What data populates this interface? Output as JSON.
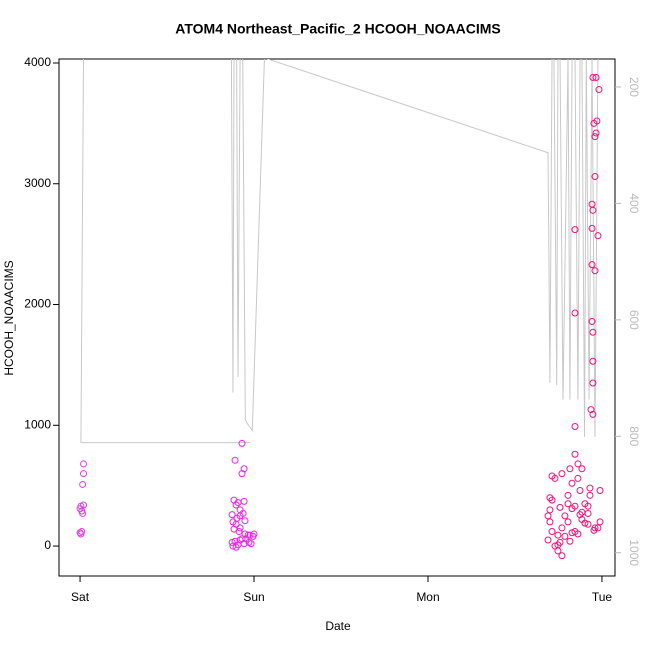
{
  "chart_data": {
    "type": "scatter",
    "title": "ATOM4 Northeast_Pacific_2 HCOOH_NOAACIMS",
    "x_label": "Date",
    "y_label": "HCOOH_NOAACIMS",
    "xlim": [
      -0.121,
      3.075
    ],
    "xticks": [
      {
        "value": 0,
        "label": "Sat"
      },
      {
        "value": 1,
        "label": "Sun"
      },
      {
        "value": 2,
        "label": "Mon"
      },
      {
        "value": 3,
        "label": "Tue"
      }
    ],
    "ylim": [
      -248,
      4033
    ],
    "yticks": [
      0,
      1000,
      2000,
      3000,
      4000
    ],
    "y2lim": [
      1040,
      152
    ],
    "y2ticks": [
      200,
      400,
      600,
      800,
      1000
    ],
    "series": [
      {
        "color": "#e040e0",
        "x": [
          0.0,
          0.005,
          0.01,
          0.0,
          0.005,
          0.01,
          0.015,
          0.02,
          0.015,
          0.02,
          0.02
        ],
        "values": [
          110,
          100,
          120,
          310,
          330,
          290,
          270,
          340,
          510,
          600,
          680
        ]
      },
      {
        "color": "#f020e8",
        "x": [
          0.931,
          0.891,
          0.943,
          0.931,
          0.885,
          0.908,
          0.897,
          0.92,
          0.937,
          0.92,
          0.902,
          0.879,
          0.897,
          0.92,
          0.914,
          0.948,
          0.977,
          0.994,
          0.954,
          0.92,
          0.891,
          0.874,
          0.943,
          0.908,
          0.879,
          0.897,
          0.943,
          0.874,
          1.0,
          0.966,
          0.931,
          0.971,
          0.983,
          0.885,
          0.948
        ],
        "values": [
          850,
          710,
          640,
          600,
          380,
          360,
          340,
          300,
          270,
          250,
          230,
          200,
          180,
          150,
          120,
          100,
          90,
          80,
          60,
          50,
          40,
          30,
          20,
          10,
          0,
          -10,
          370,
          260,
          100,
          90,
          60,
          30,
          20,
          140,
          210
        ]
      },
      {
        "color": "#f5107a",
        "x": [
          2.948,
          2.966,
          2.983,
          2.971,
          2.954,
          2.966,
          2.96,
          2.96,
          2.943,
          2.948,
          2.943,
          2.845,
          2.977,
          2.943,
          2.96,
          2.845,
          2.943,
          2.948,
          2.948,
          2.948,
          2.937,
          2.948,
          2.845,
          2.845,
          2.69,
          2.701,
          2.713,
          2.73,
          2.747,
          2.759,
          2.77,
          2.787,
          2.805,
          2.816,
          2.828,
          2.845,
          2.862,
          2.874,
          2.885,
          2.902,
          2.92,
          2.931,
          2.96,
          2.989,
          2.69,
          2.701,
          2.713,
          2.73,
          2.747,
          2.759,
          2.77,
          2.787,
          2.805,
          2.816,
          2.828,
          2.845,
          2.862,
          2.874,
          2.885,
          2.902,
          2.92,
          2.931,
          2.954,
          2.977,
          2.701,
          2.713,
          2.747,
          2.77,
          2.805,
          2.828,
          2.862,
          2.885,
          2.92,
          2.989
        ],
        "values": [
          3880,
          3880,
          3780,
          3520,
          3500,
          3420,
          3390,
          3060,
          2830,
          2780,
          2630,
          2620,
          2570,
          2330,
          2280,
          1930,
          1860,
          1770,
          1530,
          1350,
          1130,
          1090,
          990,
          760,
          50,
          200,
          380,
          560,
          90,
          30,
          150,
          250,
          420,
          640,
          310,
          120,
          560,
          460,
          280,
          350,
          180,
          420,
          150,
          200,
          250,
          400,
          120,
          0,
          -40,
          320,
          600,
          80,
          200,
          40,
          520,
          330,
          100,
          260,
          640,
          190,
          330,
          480,
          130,
          150,
          300,
          580,
          10,
          -80,
          350,
          110,
          680,
          220,
          270,
          460
        ]
      },
      {
        "type": "line",
        "axis": "y2",
        "color": "#c8c8c8",
        "x": [
          0.98,
          0.005,
          0.012,
          0.02,
          0.87,
          0.879,
          0.885,
          0.9,
          0.908,
          0.92,
          0.935,
          0.95,
          0.966,
          0.99,
          1.06,
          2.69,
          2.701,
          2.713,
          2.724,
          2.74,
          2.747,
          2.759,
          2.776,
          2.805,
          2.816,
          2.828,
          2.845,
          2.862,
          2.874,
          2.885,
          2.9,
          2.91,
          2.926,
          2.943,
          2.96,
          2.977
        ],
        "values": [
          811,
          811,
          500,
          150,
          150,
          725,
          150,
          150,
          698,
          150,
          150,
          772,
          780,
          790,
          150,
          313,
          708,
          150,
          150,
          712,
          150,
          150,
          737,
          150,
          737,
          150,
          150,
          737,
          150,
          150,
          801,
          150,
          737,
          150,
          801,
          150
        ]
      }
    ]
  }
}
